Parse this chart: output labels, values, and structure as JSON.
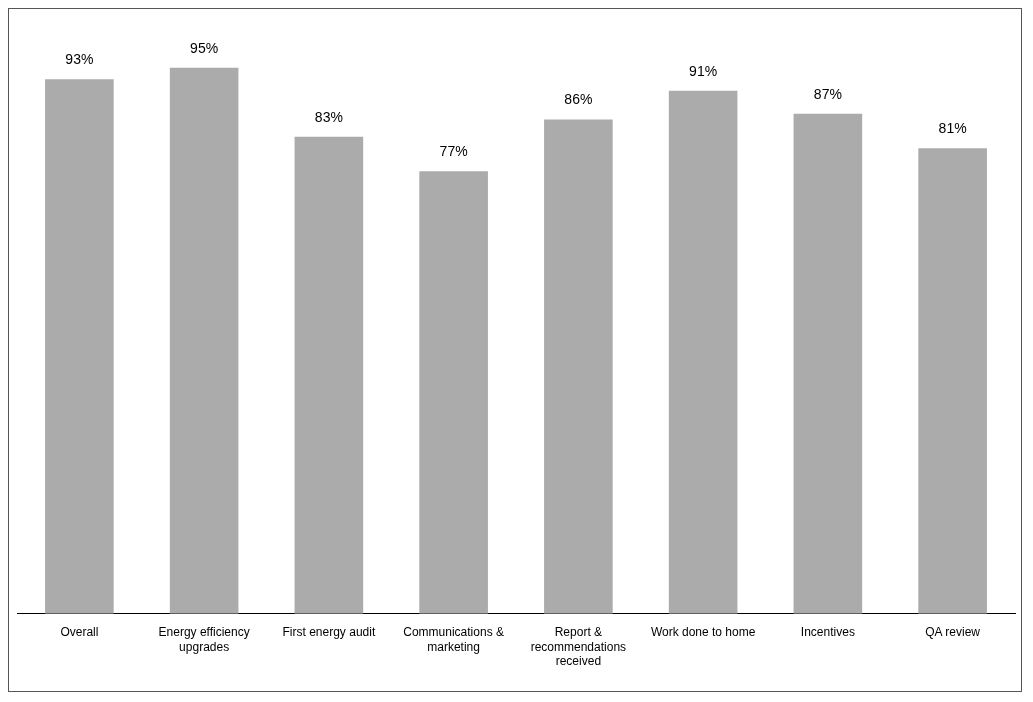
{
  "chart_data": {
    "type": "bar",
    "categories": [
      "Overall",
      "Energy efficiency upgrades",
      "First energy audit",
      "Communications & marketing",
      "Report & recommendations received",
      "Work done to home",
      "Incentives",
      "QA review"
    ],
    "values": [
      93,
      95,
      83,
      77,
      86,
      91,
      87,
      81
    ],
    "value_labels": [
      "93%",
      "95%",
      "83%",
      "77%",
      "86%",
      "91%",
      "87%",
      "81%"
    ],
    "color": "#ababab",
    "grid": false,
    "legend": false
  }
}
